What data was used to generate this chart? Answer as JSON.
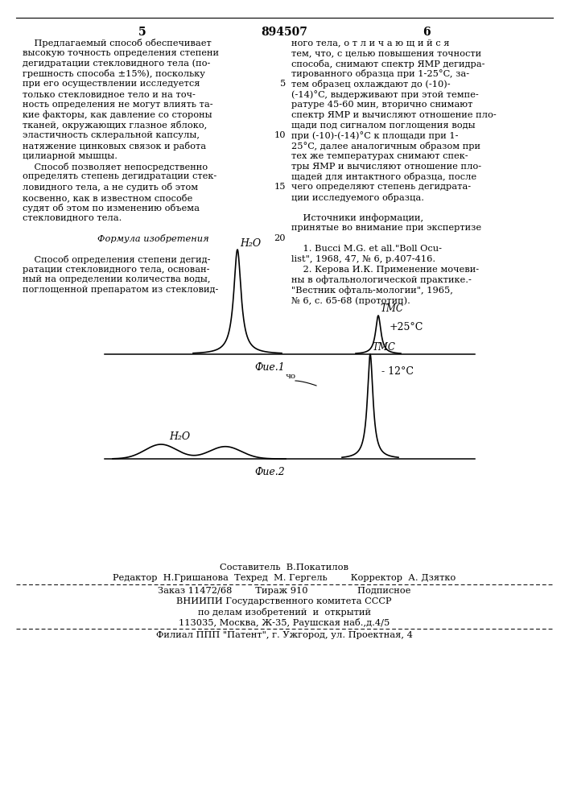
{
  "page_num_left": "5",
  "page_num_center": "894507",
  "page_num_right": "6",
  "background_color": "#ffffff",
  "left_col_lines": [
    "    Предлагаемый способ обеспечивает",
    "высокую точность определения степени",
    "дегидратации стекловидного тела (по-",
    "грешность способа ±15%), поскольку",
    "при его осуществлении исследуется",
    "только стекловидное тело и на точ-",
    "ность определения не могут влиять та-",
    "кие факторы, как давление со стороны",
    "тканей, окружающих глазное яблоко,",
    "эластичность склеральной капсулы,",
    "натяжение цинковых связок и работа",
    "цилиарной мышцы.",
    "    Способ позволяет непосредственно",
    "определять степень дегидратации стек-",
    "ловидного тела, а не судить об этом",
    "косвенно, как в известном способе",
    "судят об этом по изменению объема",
    "стекловидного тела.",
    "",
    "         Формула изобретения",
    "",
    "    Способ определения степени дегид-",
    "ратации стекловидного тела, основан-",
    "ный на определении количества воды,",
    "поглощенной препаратом из стекловид-"
  ],
  "right_col_lines": [
    "ного тела, о т л и ч а ю щ и й с я",
    "тем, что, с целью повышения точности",
    "способа, снимают спектр ЯМР дегидра-",
    "тированного образца при 1-25°C, за-",
    "тем образец охлаждают до (-10)-",
    "(-14)°C, выдерживают при этой темпе-",
    "ратуре 45-60 мин, вторично снимают",
    "спектр ЯМР и вычисляют отношение пло-",
    "щади под сигналом поглощения воды",
    "при (-10)-(-14)°C к площади при 1-",
    "25°C, далее аналогичным образом при",
    "тех же температурах снимают спек-",
    "тры ЯМР и вычисляют отношение пло-",
    "щадей для интактного образца, после",
    "чего определяют степень дегидрата-",
    "ции исследуемого образца.",
    "",
    "    Источники информации,",
    "принятые во внимание при экспертизе",
    "",
    "    1. Bucci M.G. et all.\"Boll Ocu-",
    "list\", 1968, 47, № 6, p.407-416.",
    "    2. Керова И.К. Применение мочеви-",
    "ны в офтальнологической практике.-",
    "\"Вестник офталь-мологии\", 1965,",
    "№ 6, с. 65-68 (прототип)."
  ],
  "line_numbers": {
    "4": "5",
    "9": "10",
    "14": "15",
    "19": "20"
  },
  "fig1_h2o_label": "H₂O",
  "fig1_tmc_label": "TMC",
  "fig1_temp_label": "+25°C",
  "fig1_caption": "Фue.1",
  "fig2_h2o_label": "H₂O",
  "fig2_tmc_label": "TMC",
  "fig2_temp_label": "- 12°C",
  "fig2_caption": "Фue.2",
  "footer_composer": "Составитель  В.Покатилов",
  "footer_editor": "Редактор  Н.Гришанова  Техред  М. Гергель        Корректор  А. Дзятко",
  "footer_order": "Заказ 11472/68        Тираж 910                 Подписное",
  "footer_vnipi": "ВНИИПИ Государственного комитета СССР",
  "footer_affairs": "по делам изобретений  и  открытий",
  "footer_address": "113035, Москва, Ж-35, Раушская наб.,д.4/5",
  "footer_patent": "Филиал ППП \"Патент\", г. Ужгород, ул. Проектная, 4"
}
